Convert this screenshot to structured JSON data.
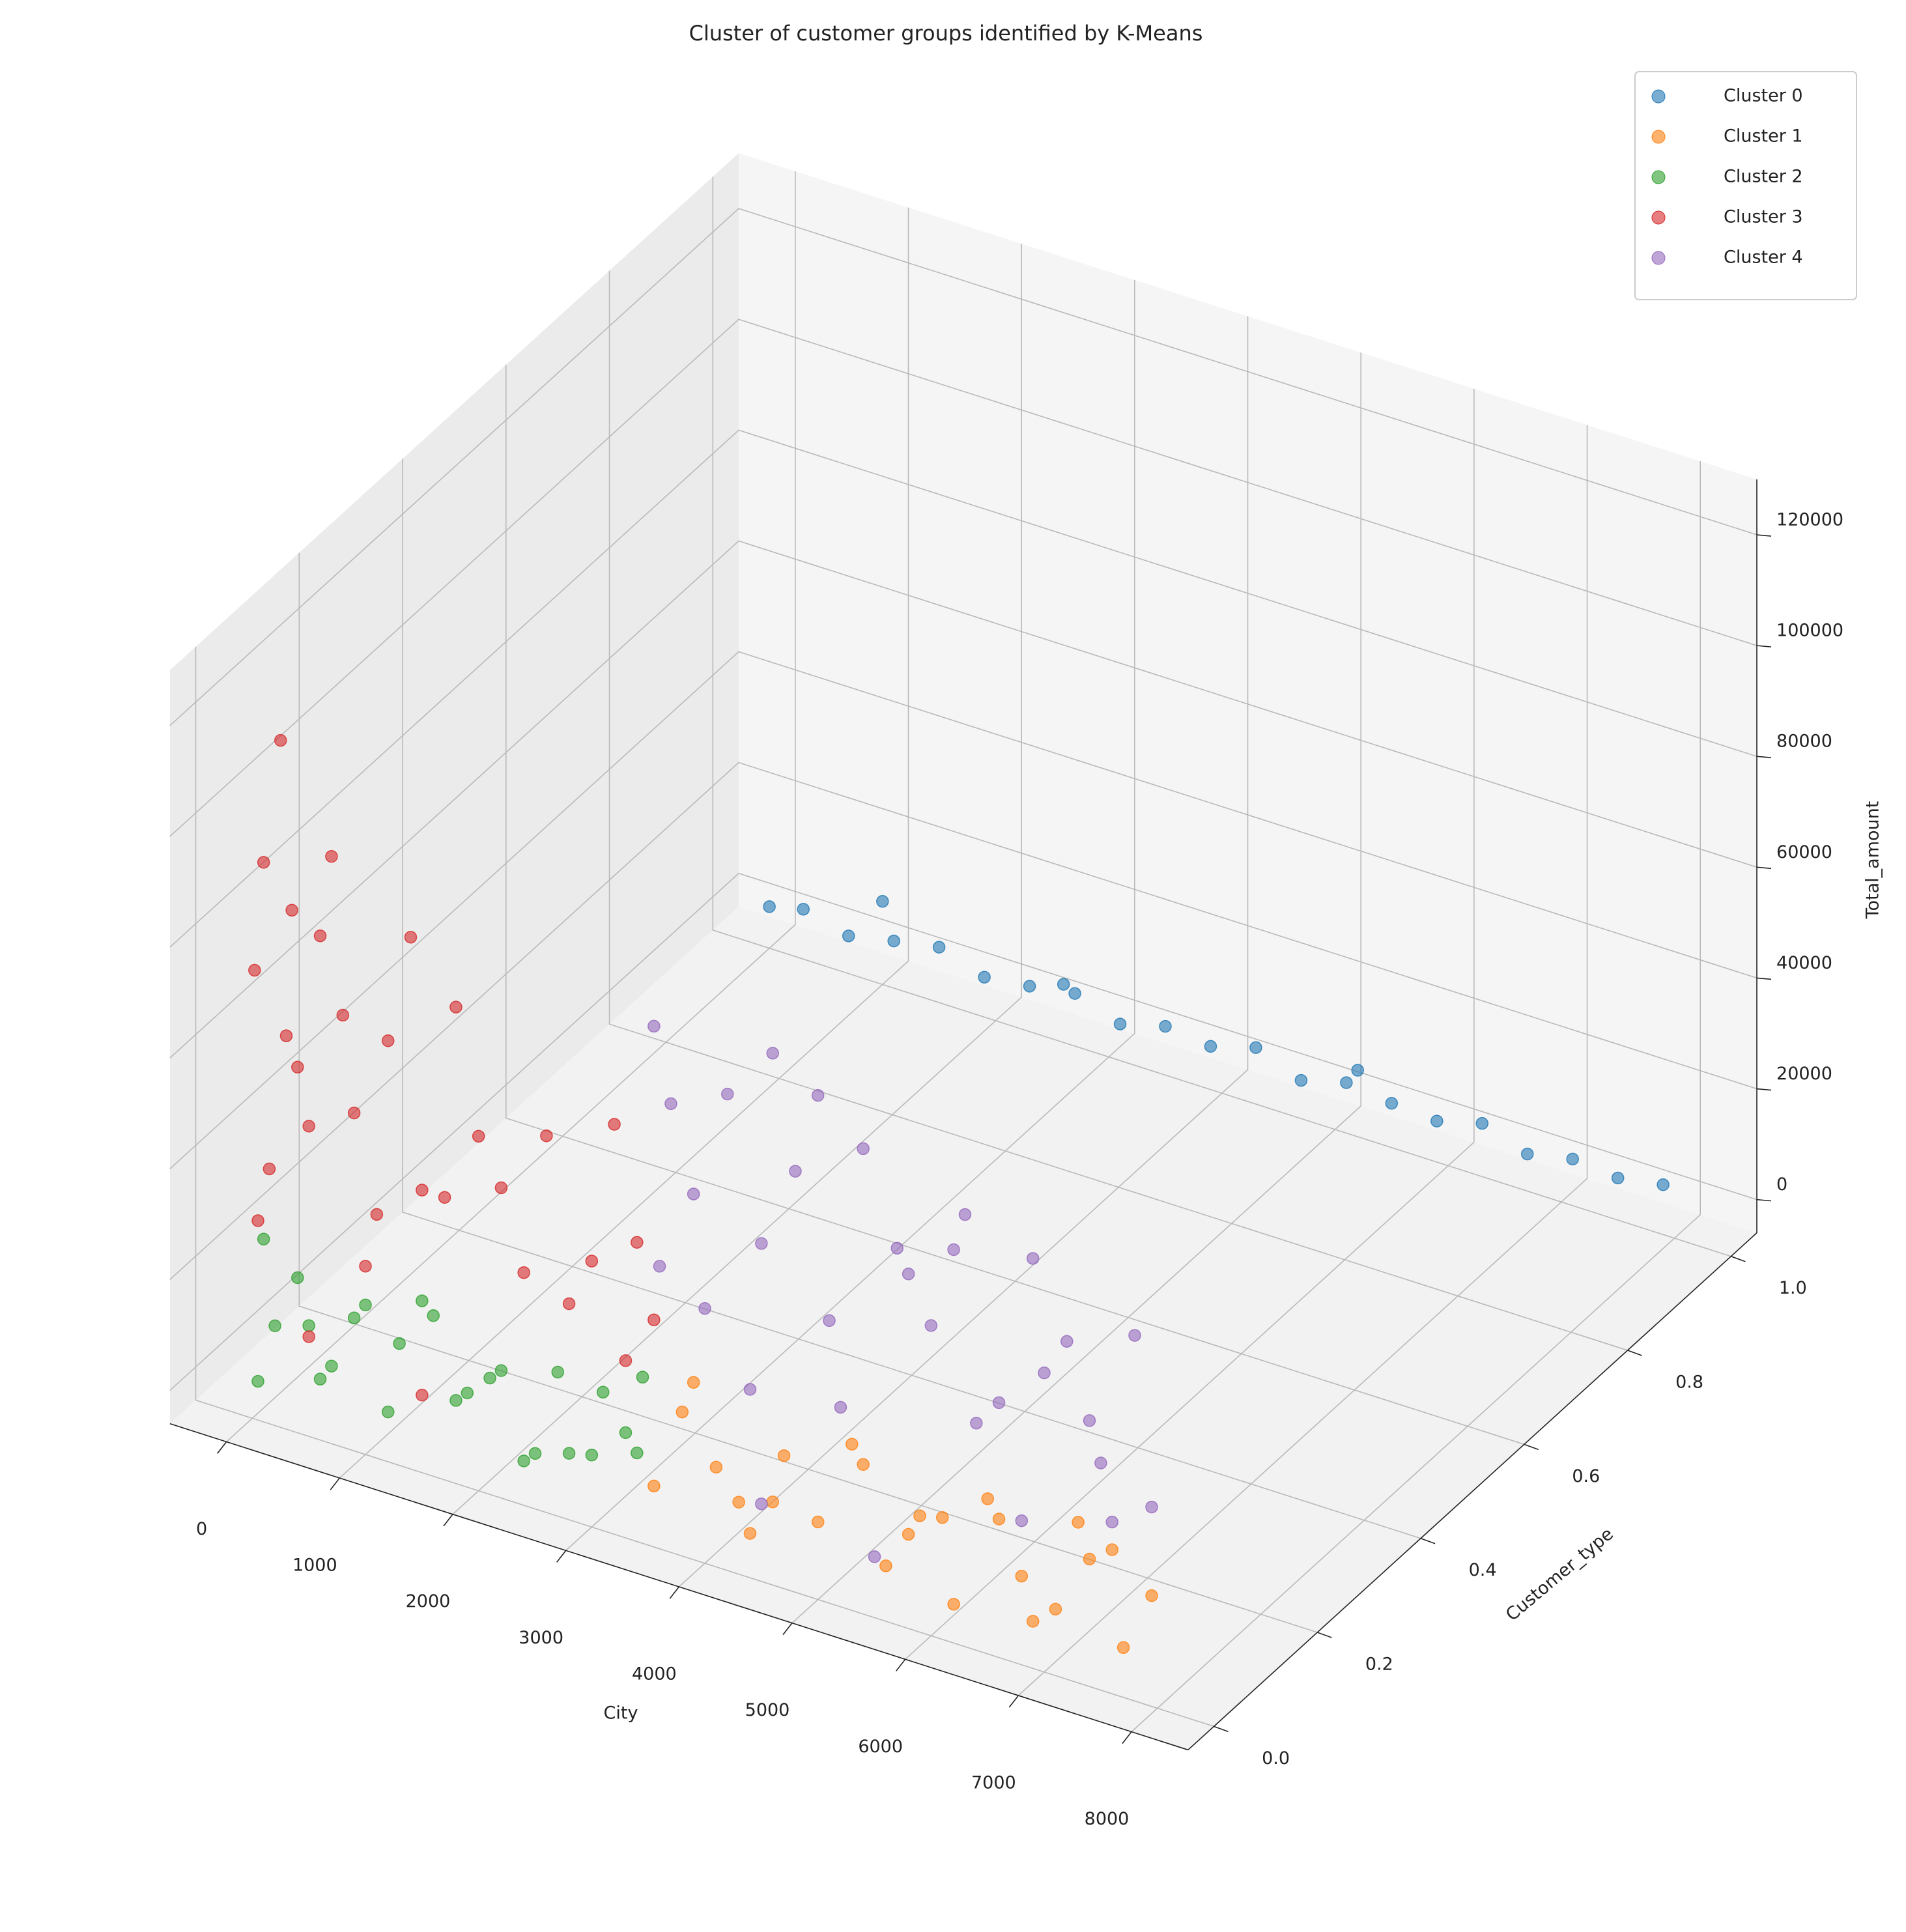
{
  "chart_data": {
    "type": "scatter3d",
    "title": "Cluster of customer groups identified by K-Means",
    "xlabel": "City",
    "ylabel": "Customer_type",
    "zlabel": "Total_amount",
    "xlim": [
      -500,
      8500
    ],
    "ylim": [
      -0.05,
      1.05
    ],
    "zlim": [
      -6000,
      130000
    ],
    "xticks": [
      0,
      1000,
      2000,
      3000,
      4000,
      5000,
      6000,
      7000,
      8000
    ],
    "yticks": [
      {
        "value": 0,
        "label": "0.0"
      },
      0.2,
      0.4,
      0.6,
      0.8,
      {
        "value": 1,
        "label": "1.0"
      }
    ],
    "zticks": [
      0,
      20000,
      40000,
      60000,
      80000,
      100000,
      120000
    ],
    "grid": true,
    "legend": "upper right",
    "series": [
      {
        "name": "Cluster 0",
        "color": "#1f77b4",
        "x": [
          0,
          300,
          700,
          1100,
          1500,
          1900,
          2300,
          2700,
          3100,
          3500,
          3900,
          4300,
          4700,
          5100,
          5500,
          5900,
          6300,
          6700,
          7100,
          7500,
          7900,
          1000,
          2600,
          5200
        ],
        "y": [
          1,
          1,
          1,
          1,
          1,
          1,
          1,
          1,
          1,
          1,
          1,
          1,
          1,
          1,
          1,
          1,
          1,
          1,
          1,
          1,
          1,
          1,
          1,
          1
        ],
        "z": [
          1500,
          3000,
          800,
          2500,
          4000,
          1200,
          2200,
          3500,
          600,
          2800,
          1800,
          4200,
          900,
          3100,
          2000,
          1400,
          3600,
          700,
          2400,
          1600,
          3000,
          9000,
          4500,
          6000
        ]
      },
      {
        "name": "Cluster 1",
        "color": "#ff7f0e",
        "x": [
          3550,
          3800,
          4100,
          4400,
          4700,
          5000,
          5300,
          5600,
          5900,
          6200,
          6500,
          6800,
          7100,
          7400,
          7700,
          7950,
          3900,
          4600,
          5400,
          6100,
          6900,
          7600,
          4300,
          5800,
          7300,
          6600
        ],
        "y": [
          0,
          0,
          0,
          0,
          0,
          0,
          0,
          0,
          0,
          0,
          0,
          0,
          0,
          0,
          0,
          0,
          0,
          0,
          0,
          0,
          0,
          0,
          0,
          0,
          0,
          0
        ],
        "z": [
          5000,
          20000,
          12000,
          2000,
          18000,
          8000,
          24000,
          4000,
          15000,
          1000,
          22000,
          10000,
          6000,
          17000,
          3000,
          14000,
          26000,
          9000,
          21000,
          16000,
          2500,
          20000,
          7000,
          11000,
          23000,
          19000
        ]
      },
      {
        "name": "Cluster 2",
        "color": "#2ca02c",
        "x": [
          50,
          200,
          400,
          600,
          900,
          1200,
          1500,
          1800,
          2100,
          2400,
          2700,
          3000,
          3300,
          3450,
          100,
          700,
          1300,
          1900,
          2500,
          3100,
          500,
          1600,
          2800,
          3400,
          1000,
          2200
        ],
        "y": [
          0,
          0,
          0,
          0,
          0,
          0,
          0,
          0,
          0,
          0,
          0,
          0,
          0,
          0,
          0,
          0,
          0,
          0,
          0,
          0,
          0,
          0,
          0,
          0,
          0,
          0
        ],
        "z": [
          1000,
          12000,
          22000,
          5000,
          18000,
          3000,
          25000,
          9000,
          15000,
          2000,
          20000,
          7000,
          13000,
          24000,
          27000,
          8000,
          16000,
          11000,
          4000,
          19000,
          14000,
          23000,
          6000,
          10000,
          21000,
          17000
        ]
      },
      {
        "name": "Cluster 3",
        "color": "#d62728",
        "x": [
          20,
          100,
          250,
          400,
          150,
          600,
          900,
          1200,
          1500,
          50,
          300,
          700,
          1100,
          1800,
          2200,
          2600,
          3000,
          3400,
          3550,
          2000,
          1400,
          800,
          2800,
          3200,
          500,
          1700,
          2400,
          350,
          1000,
          3300,
          500,
          1500
        ],
        "y": [
          0,
          0,
          0,
          0,
          0,
          0,
          0,
          0,
          0,
          0,
          0,
          0,
          0,
          0,
          0,
          0,
          0,
          0,
          0,
          0,
          0,
          0,
          0,
          0,
          0,
          0,
          0,
          0,
          0,
          0,
          0,
          0
        ],
        "z": [
          75000,
          95000,
          118000,
          60000,
          40000,
          85000,
          55000,
          70000,
          45000,
          30000,
          65000,
          100000,
          38000,
          80000,
          50000,
          62000,
          42000,
          48000,
          35000,
          58000,
          90000,
          72000,
          33000,
          68000,
          50000,
          45000,
          36000,
          88000,
          28000,
          26000,
          12000,
          8000
        ]
      },
      {
        "name": "Cluster 4",
        "color": "#9467bd",
        "x": [
          3550,
          3700,
          3900,
          4200,
          4500,
          4800,
          5100,
          5400,
          5700,
          6000,
          6300,
          6600,
          6900,
          7200,
          7500,
          7800,
          7950,
          4000,
          4600,
          5200,
          5800,
          6400,
          7000,
          7600,
          3600,
          5000,
          6200,
          7400,
          4400,
          6800,
          4500,
          5500
        ],
        "y": [
          0,
          0,
          0,
          0,
          0,
          0,
          0,
          0,
          0,
          0,
          0,
          0,
          0,
          0,
          0,
          0,
          0,
          0,
          0,
          0,
          0,
          0,
          0,
          0,
          0,
          0,
          0,
          0,
          0,
          0,
          0,
          0
        ],
        "z": [
          88000,
          75000,
          60000,
          80000,
          55000,
          70000,
          45000,
          78000,
          62000,
          50000,
          72000,
          40000,
          68000,
          55000,
          35000,
          60000,
          30000,
          40000,
          90000,
          30000,
          58000,
          35000,
          48000,
          25000,
          45000,
          85000,
          65000,
          42000,
          28000,
          20000,
          8000,
          5000
        ]
      }
    ]
  }
}
